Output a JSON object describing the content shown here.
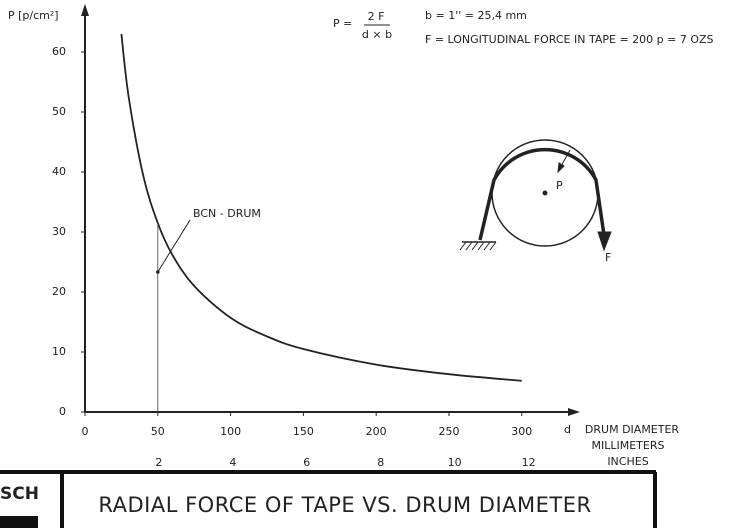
{
  "chart_data": {
    "type": "line",
    "title": "RADIAL FORCE OF TAPE VS. DRUM DIAMETER",
    "y_label": "P [p/cm²]",
    "x_label": "d",
    "x_label_lines": [
      "DRUM DIAMETER",
      "MILLIMETERS",
      "INCHES"
    ],
    "formula": {
      "lhs": "P =",
      "numerator": "2 F",
      "denominator": "d × b"
    },
    "notes": [
      "b = 1'' = 25,4 mm",
      "F = LONGITUDINAL FORCE IN TAPE = 200 p = 7 OZS"
    ],
    "annotation": {
      "text": "BCN - DRUM",
      "x": 50
    },
    "diagram": {
      "center_label": "P",
      "force_label": "F"
    },
    "logo": "SCH",
    "x": [
      25,
      30,
      40,
      50,
      60,
      75,
      100,
      125,
      150,
      200,
      250,
      300
    ],
    "values": [
      63,
      52.5,
      39.4,
      31.5,
      26.2,
      21,
      15.7,
      12.6,
      10.5,
      7.9,
      6.3,
      5.2
    ],
    "color": "#222222",
    "xlim": [
      0,
      340
    ],
    "xticks": [
      0,
      50,
      100,
      150,
      200,
      250,
      300
    ],
    "x2lim": [
      0,
      13.39
    ],
    "x2ticks": [
      2,
      4,
      6,
      8,
      10,
      12
    ],
    "ylim": [
      0,
      68
    ],
    "yticks": [
      0,
      10,
      20,
      30,
      40,
      50,
      60
    ]
  }
}
